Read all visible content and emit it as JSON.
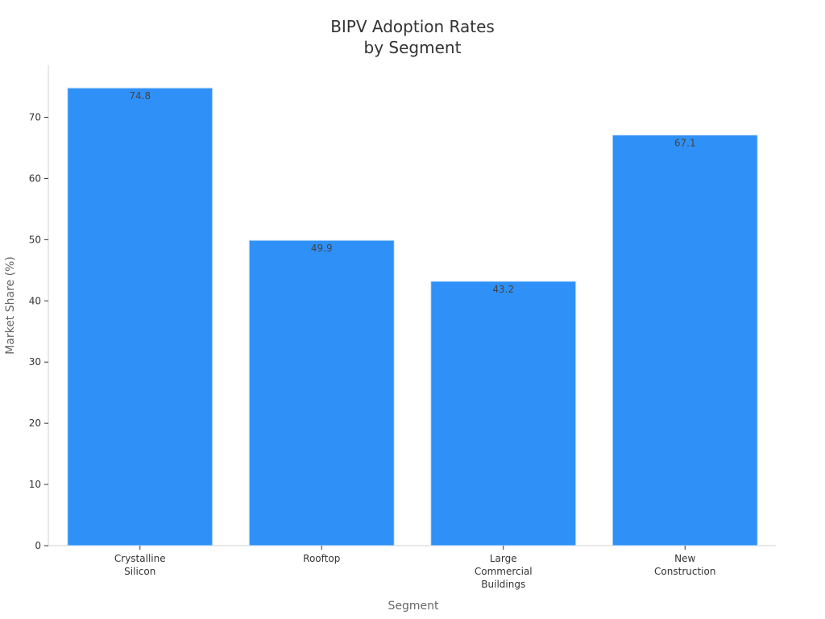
{
  "chart_data": {
    "type": "bar",
    "title": [
      "BIPV Adoption Rates",
      "by Segment"
    ],
    "xlabel": "Segment",
    "ylabel": "Market Share (%)",
    "categories": [
      [
        "Crystalline",
        "Silicon"
      ],
      [
        "Rooftop"
      ],
      [
        "Large",
        "Commercial",
        "Buildings"
      ],
      [
        "New",
        "Construction"
      ]
    ],
    "values": [
      74.8,
      49.9,
      43.2,
      67.1
    ],
    "data_labels": [
      "74.8",
      "49.9",
      "43.2",
      "67.1"
    ],
    "ylim": [
      0,
      78.5
    ],
    "yticks": [
      0,
      10,
      20,
      30,
      40,
      50,
      60,
      70
    ],
    "grid": false,
    "legend": "none",
    "bar_color": "#2f91f7",
    "bar_edge_color": "#cfe3f7"
  }
}
